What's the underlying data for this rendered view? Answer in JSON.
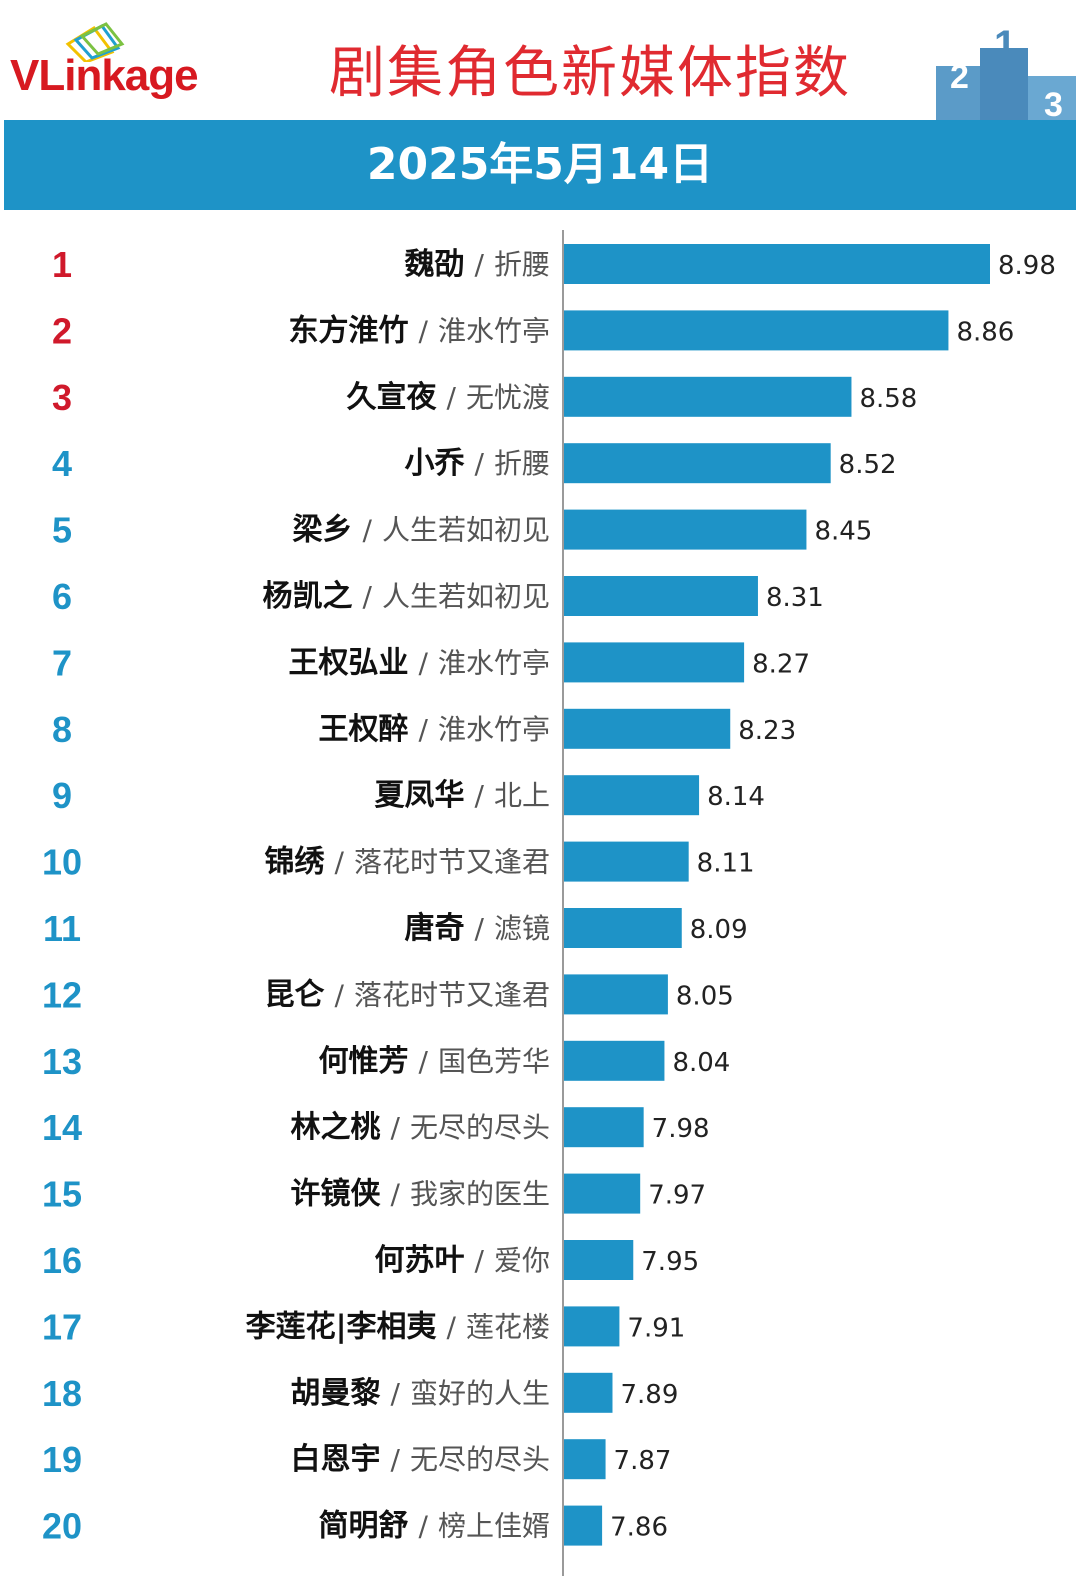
{
  "header": {
    "logo": "VLinkage",
    "title": "剧集角色新媒体指数",
    "podium_numbers": [
      "2",
      "1",
      "3"
    ]
  },
  "date": "2025年5月14日",
  "colors": {
    "bar": "#1e93c7",
    "title": "#e02a30",
    "top_rank": "#d0192b",
    "other_rank": "#1e93c7",
    "band": "#1e93c7"
  },
  "chart_data": {
    "type": "bar",
    "orientation": "horizontal",
    "title": "剧集角色新媒体指数",
    "subtitle": "2025年5月14日",
    "ranks": [
      1,
      2,
      3,
      4,
      5,
      6,
      7,
      8,
      9,
      10,
      11,
      12,
      13,
      14,
      15,
      16,
      17,
      18,
      19,
      20
    ],
    "categories": [
      {
        "character": "魏劭",
        "show": "折腰"
      },
      {
        "character": "东方淮竹",
        "show": "淮水竹亭"
      },
      {
        "character": "久宣夜",
        "show": "无忧渡"
      },
      {
        "character": "小乔",
        "show": "折腰"
      },
      {
        "character": "梁乡",
        "show": "人生若如初见"
      },
      {
        "character": "杨凯之",
        "show": "人生若如初见"
      },
      {
        "character": "王权弘业",
        "show": "淮水竹亭"
      },
      {
        "character": "王权醉",
        "show": "淮水竹亭"
      },
      {
        "character": "夏凤华",
        "show": "北上"
      },
      {
        "character": "锦绣",
        "show": "落花时节又逢君"
      },
      {
        "character": "唐奇",
        "show": "滤镜"
      },
      {
        "character": "昆仑",
        "show": "落花时节又逢君"
      },
      {
        "character": "何惟芳",
        "show": "国色芳华"
      },
      {
        "character": "林之桃",
        "show": "无尽的尽头"
      },
      {
        "character": "许镜侠",
        "show": "我家的医生"
      },
      {
        "character": "何苏叶",
        "show": "爱你"
      },
      {
        "character": "李莲花|李相夷",
        "show": "莲花楼"
      },
      {
        "character": "胡曼黎",
        "show": "蛮好的人生"
      },
      {
        "character": "白恩宇",
        "show": "无尽的尽头"
      },
      {
        "character": "简明舒",
        "show": "榜上佳婿"
      }
    ],
    "values": [
      8.98,
      8.86,
      8.58,
      8.52,
      8.45,
      8.31,
      8.27,
      8.23,
      8.14,
      8.11,
      8.09,
      8.05,
      8.04,
      7.98,
      7.97,
      7.95,
      7.91,
      7.89,
      7.87,
      7.86
    ],
    "value_labels": [
      "8.98",
      "8.86",
      "8.58",
      "8.52",
      "8.45",
      "8.31",
      "8.27",
      "8.23",
      "8.14",
      "8.11",
      "8.09",
      "8.05",
      "8.04",
      "7.98",
      "7.97",
      "7.95",
      "7.91",
      "7.89",
      "7.87",
      "7.86"
    ],
    "xlim": [
      7.75,
      8.98
    ],
    "grid": false,
    "legend": "none",
    "separator": "/"
  }
}
